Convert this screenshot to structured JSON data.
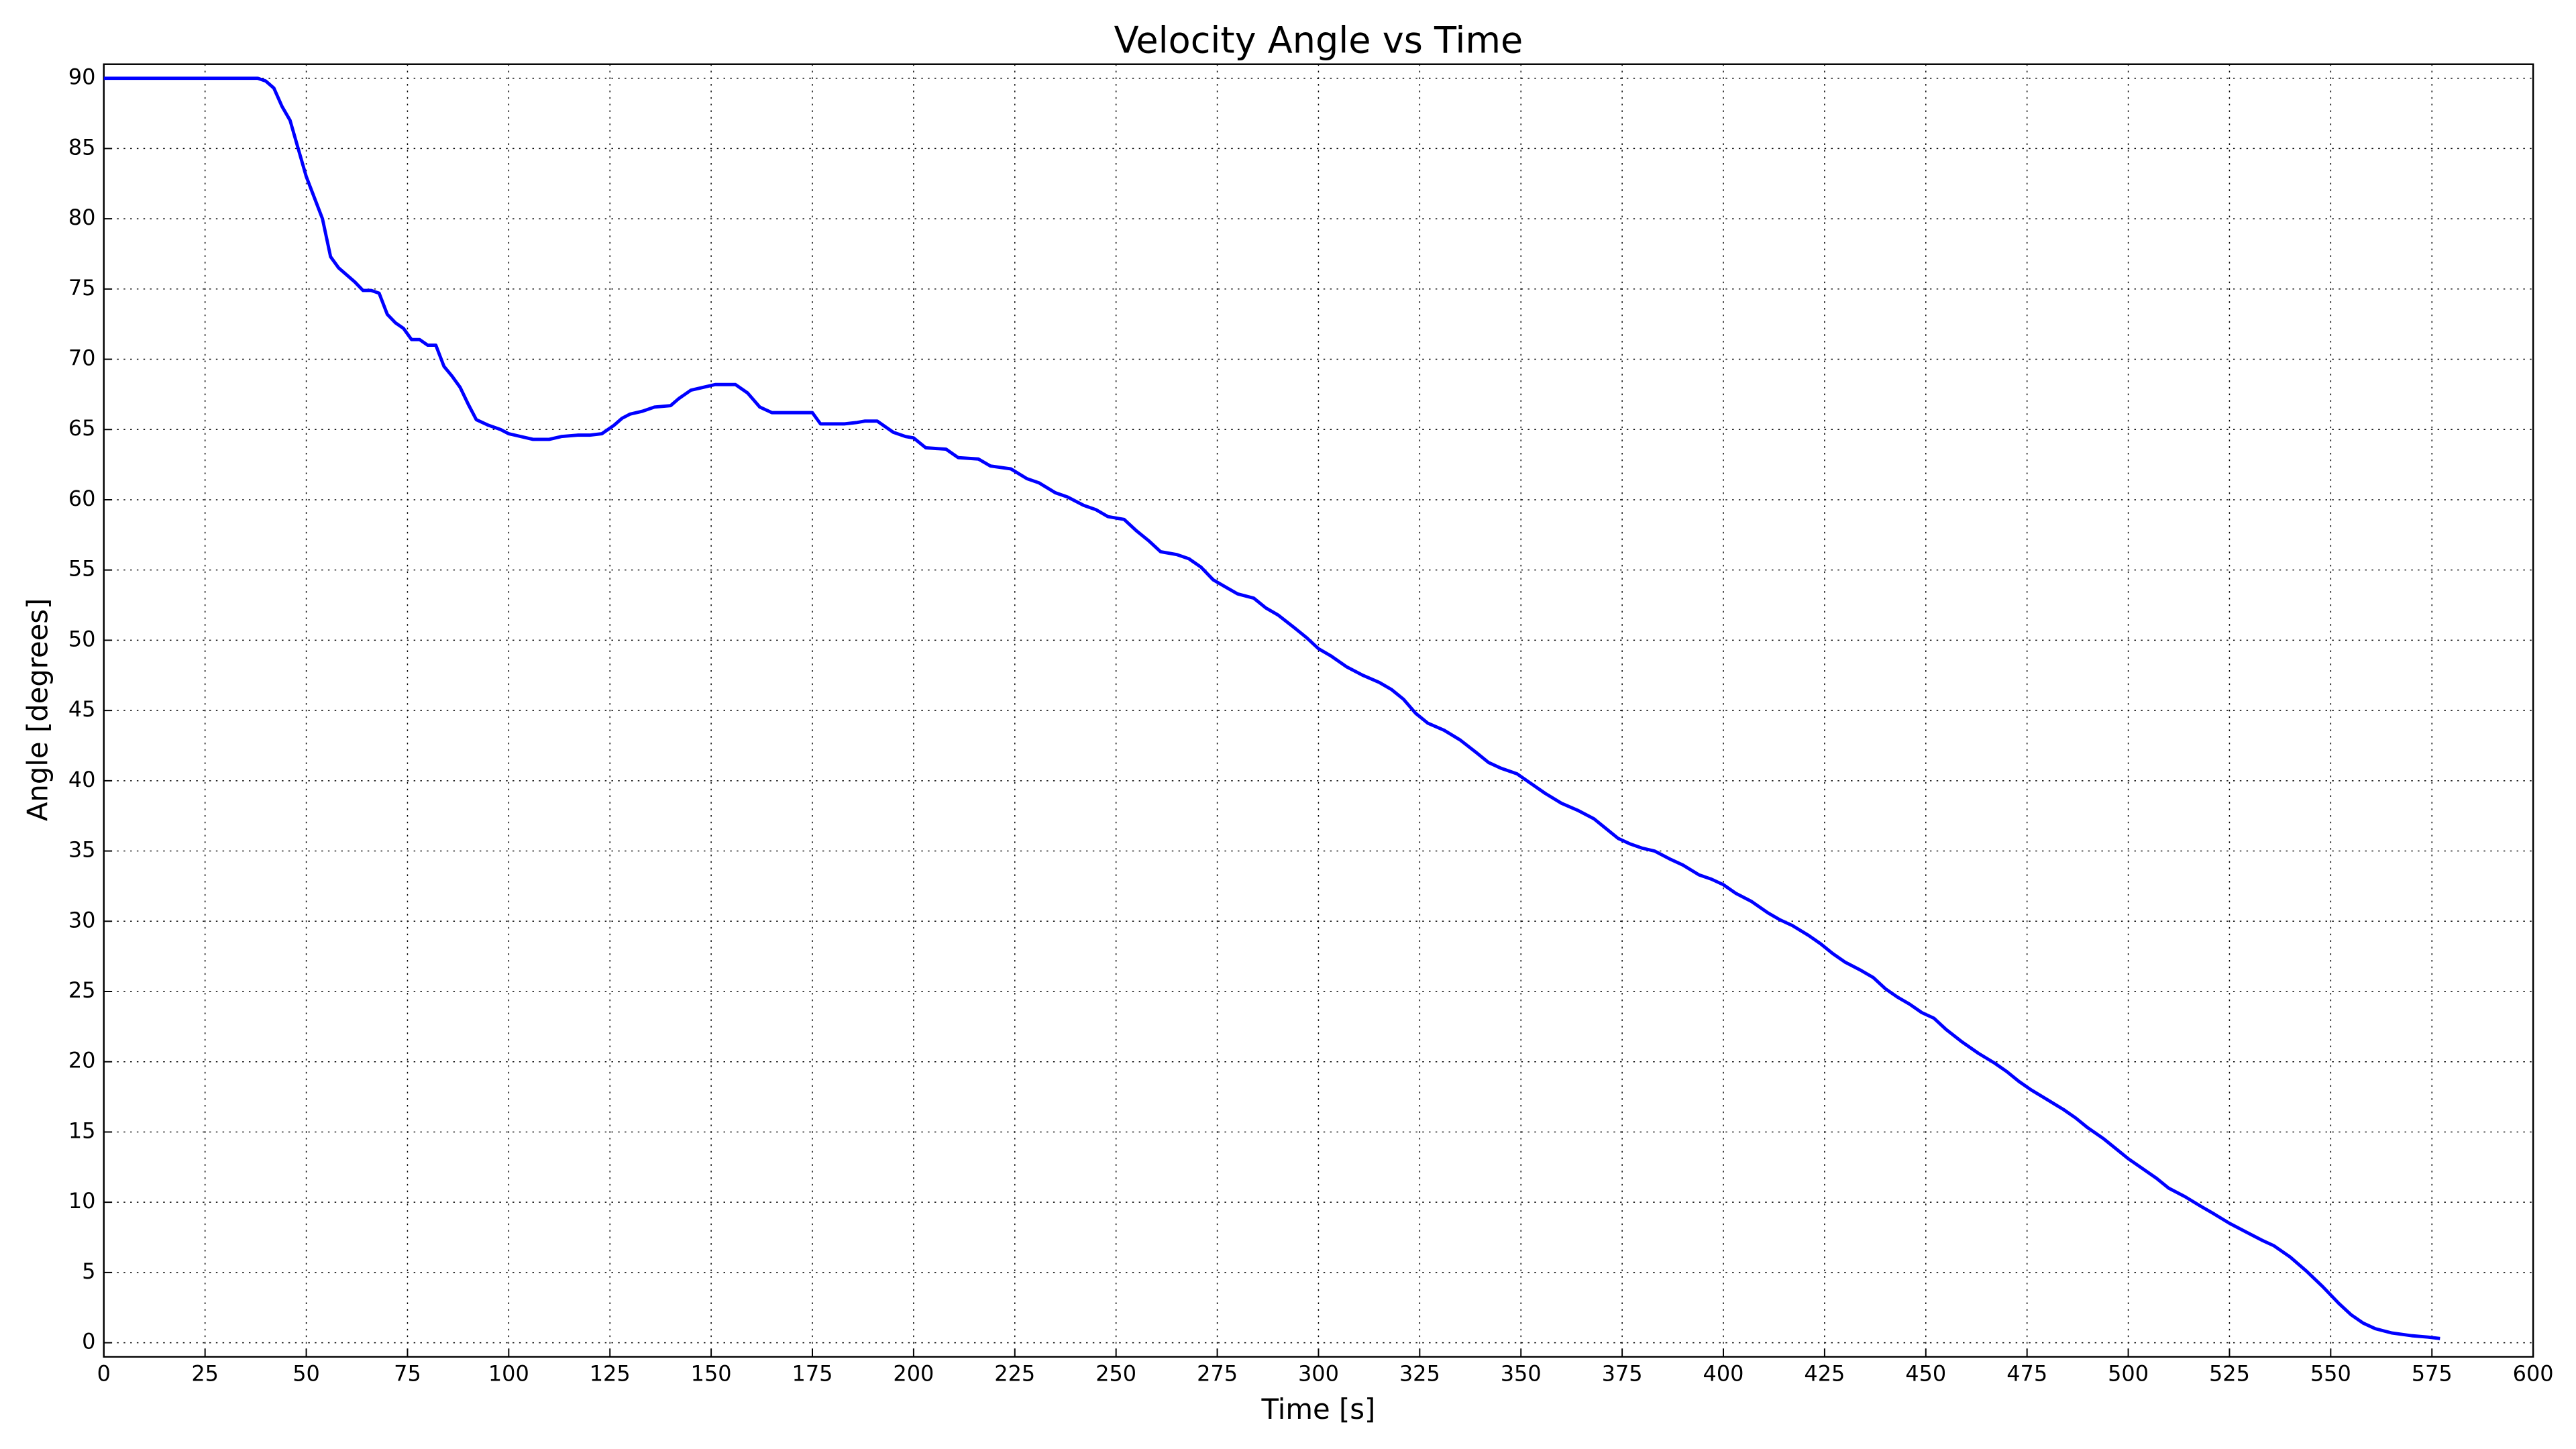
{
  "chart_data": {
    "type": "line",
    "title": "Velocity Angle vs Time",
    "x_label": "Time [s]",
    "y_label": "Angle [degrees]",
    "xlim": [
      0,
      600
    ],
    "ylim": [
      -1,
      91
    ],
    "xticks": [
      0,
      25,
      50,
      75,
      100,
      125,
      150,
      175,
      200,
      225,
      250,
      275,
      300,
      325,
      350,
      375,
      400,
      425,
      450,
      475,
      500,
      525,
      550,
      575,
      600
    ],
    "yticks": [
      0,
      5,
      10,
      15,
      20,
      25,
      30,
      35,
      40,
      45,
      50,
      55,
      60,
      65,
      70,
      75,
      80,
      85,
      90
    ],
    "grid": true,
    "x": [
      0,
      38,
      40,
      42,
      44,
      46,
      48,
      50,
      52,
      54,
      56,
      58,
      60,
      62,
      64,
      66,
      68,
      70,
      72,
      74,
      76,
      78,
      80,
      82,
      84,
      86,
      88,
      90,
      92,
      95,
      98,
      100,
      103,
      106,
      110,
      113,
      117,
      120,
      123,
      126,
      128,
      130,
      133,
      136,
      140,
      142,
      145,
      148,
      151,
      156,
      159,
      162,
      165,
      168,
      172,
      175,
      177,
      180,
      183,
      186,
      188,
      191,
      195,
      198,
      200,
      203,
      208,
      211,
      216,
      219,
      224,
      228,
      231,
      235,
      238,
      242,
      245,
      248,
      252,
      255,
      258,
      261,
      265,
      268,
      271,
      274,
      277,
      280,
      284,
      287,
      290,
      294,
      297,
      300,
      303,
      307,
      311,
      315,
      318,
      321,
      324,
      327,
      331,
      335,
      339,
      342,
      345,
      349,
      352,
      356,
      360,
      364,
      368,
      371,
      374,
      377,
      380,
      383,
      387,
      390,
      394,
      397,
      400,
      403,
      407,
      411,
      414,
      417,
      421,
      424,
      427,
      430,
      434,
      437,
      440,
      443,
      446,
      449,
      452,
      455,
      459,
      463,
      467,
      470,
      473,
      476,
      480,
      484,
      487,
      490,
      494,
      497,
      500,
      504,
      507,
      510,
      514,
      518,
      521,
      525,
      529,
      533,
      536,
      540,
      544,
      548,
      552,
      555,
      558,
      561,
      565,
      570,
      574,
      577
    ],
    "series": [
      {
        "color": "#0000ff",
        "values": [
          90,
          90,
          89.8,
          89.3,
          88,
          87,
          85,
          83,
          81.5,
          80,
          77.3,
          76.5,
          76,
          75.5,
          74.9,
          74.9,
          74.7,
          73.2,
          72.6,
          72.2,
          71.4,
          71.4,
          71,
          71,
          69.5,
          68.8,
          68,
          66.8,
          65.7,
          65.3,
          65,
          64.7,
          64.5,
          64.3,
          64.3,
          64.5,
          64.6,
          64.6,
          64.7,
          65.3,
          65.8,
          66.1,
          66.3,
          66.6,
          66.7,
          67.2,
          67.8,
          68,
          68.2,
          68.2,
          67.6,
          66.6,
          66.2,
          66.2,
          66.2,
          66.2,
          65.4,
          65.4,
          65.4,
          65.5,
          65.6,
          65.6,
          64.8,
          64.5,
          64.4,
          63.7,
          63.6,
          63,
          62.9,
          62.4,
          62.2,
          61.5,
          61.2,
          60.5,
          60.2,
          59.6,
          59.3,
          58.8,
          58.6,
          57.8,
          57.1,
          56.3,
          56.1,
          55.8,
          55.2,
          54.3,
          53.8,
          53.3,
          53,
          52.3,
          51.8,
          50.9,
          50.2,
          49.4,
          48.9,
          48.1,
          47.5,
          47,
          46.5,
          45.8,
          44.8,
          44.1,
          43.6,
          42.9,
          42,
          41.3,
          40.9,
          40.5,
          39.9,
          39.1,
          38.4,
          37.9,
          37.3,
          36.6,
          35.9,
          35.5,
          35.2,
          35,
          34.4,
          34,
          33.3,
          33,
          32.6,
          32,
          31.4,
          30.6,
          30.1,
          29.7,
          29,
          28.4,
          27.7,
          27.1,
          26.5,
          26,
          25.2,
          24.6,
          24.1,
          23.5,
          23.1,
          22.3,
          21.4,
          20.6,
          19.9,
          19.3,
          18.6,
          18,
          17.3,
          16.6,
          16,
          15.3,
          14.5,
          13.8,
          13.1,
          12.3,
          11.7,
          11,
          10.4,
          9.7,
          9.2,
          8.5,
          7.9,
          7.3,
          6.9,
          6.1,
          5.1,
          4,
          2.8,
          2,
          1.4,
          1,
          0.7,
          0.5,
          0.4,
          0.3
        ]
      }
    ]
  }
}
